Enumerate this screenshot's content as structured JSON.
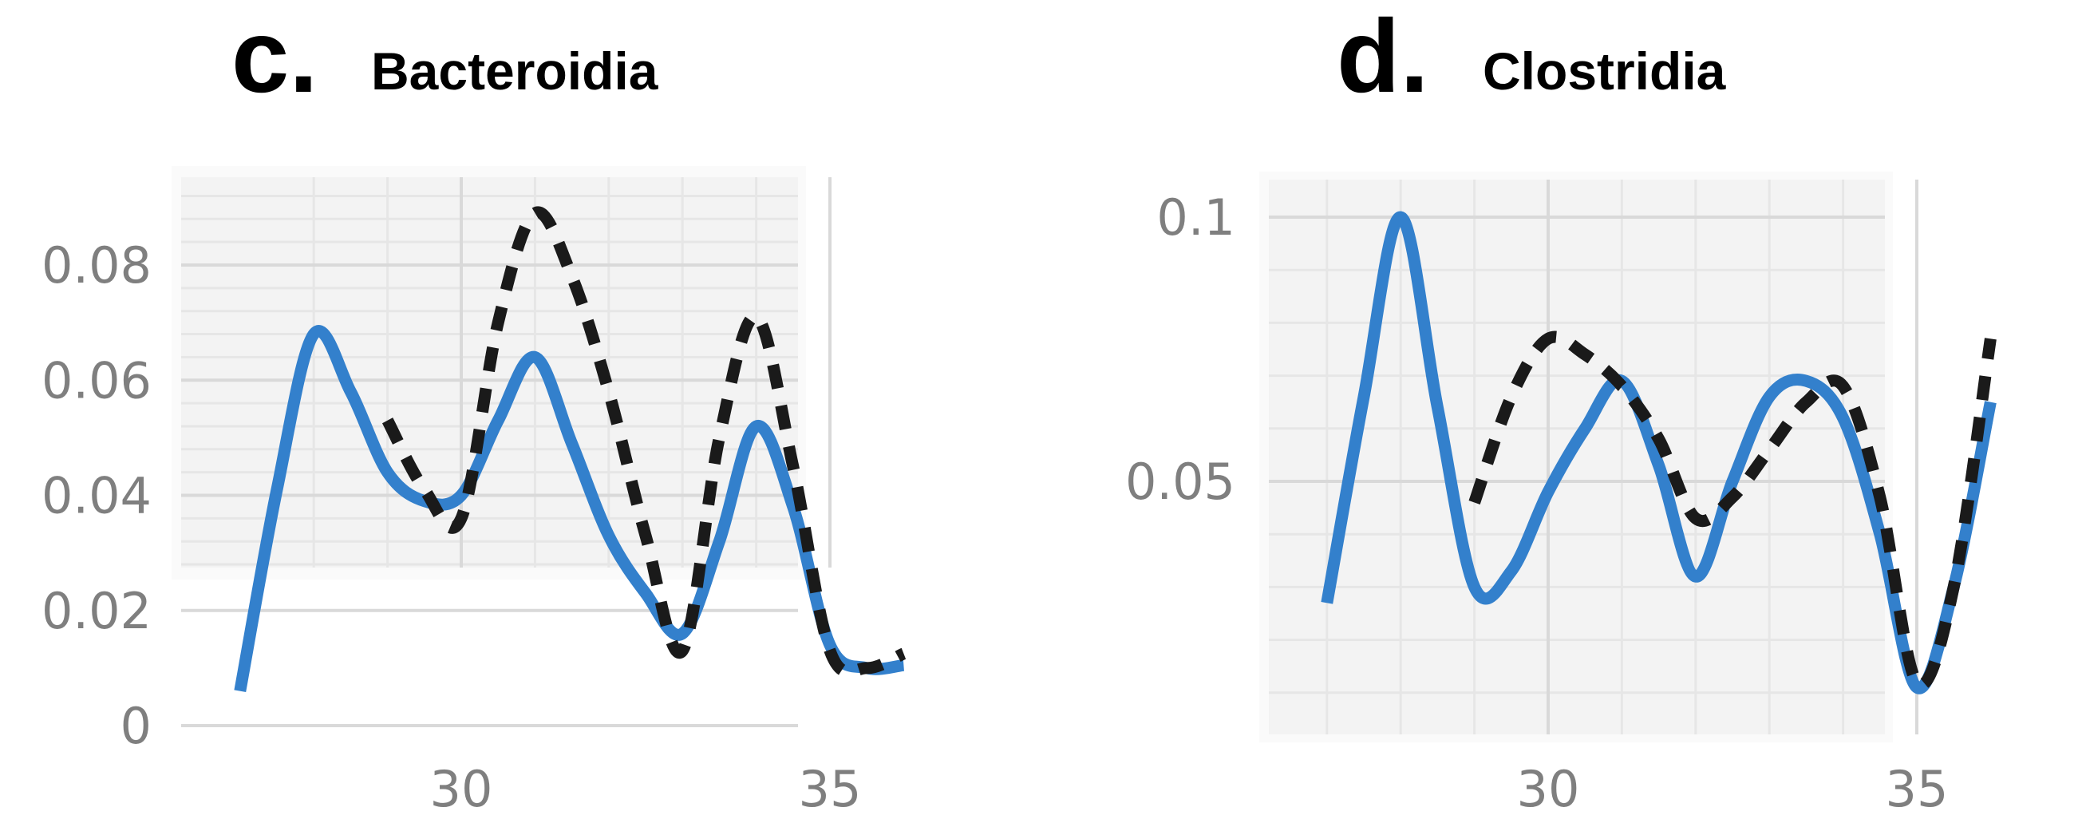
{
  "panels": [
    {
      "letter": "c.",
      "title": "Bacteroidia",
      "chart_data": {
        "type": "line",
        "title": "Bacteroidia",
        "xlabel": "",
        "ylabel": "",
        "xlim": [
          26.2,
          36.9
        ],
        "ylim": [
          -0.0005,
          0.094
        ],
        "x_ticks": [
          30,
          35
        ],
        "x_tick_labels": [
          "30",
          "35"
        ],
        "y_ticks": [
          0,
          0.02,
          0.04,
          0.06,
          0.08
        ],
        "y_tick_labels": [
          "0",
          "0.02",
          "0.04",
          "0.06",
          "0.08"
        ],
        "x_minor_grid": [
          28,
          29,
          31,
          32,
          33,
          34
        ],
        "y_minor_grid_step": 0.004,
        "grid": true,
        "series": [
          {
            "style": "solid",
            "color": "#3380cc",
            "x": [
              27,
              27.5,
              28,
              28.5,
              29,
              29.5,
              30,
              30.5,
              31,
              31.5,
              32,
              32.5,
              33,
              33.5,
              34,
              34.5,
              35,
              35.5,
              36
            ],
            "y": [
              0.006,
              0.041,
              0.068,
              0.058,
              0.044,
              0.039,
              0.04,
              0.053,
              0.064,
              0.049,
              0.033,
              0.023,
              0.016,
              0.032,
              0.052,
              0.038,
              0.014,
              0.01,
              0.0105
            ]
          },
          {
            "style": "dashed",
            "color": "#1a1a1a",
            "x": [
              29,
              29.5,
              30,
              30.5,
              31,
              31.5,
              32,
              32.5,
              33,
              33.5,
              34,
              34.5,
              35,
              35.5,
              36
            ],
            "y": [
              0.053,
              0.041,
              0.036,
              0.07,
              0.089,
              0.078,
              0.058,
              0.033,
              0.013,
              0.05,
              0.071,
              0.045,
              0.013,
              0.01,
              0.0125
            ]
          }
        ]
      }
    },
    {
      "letter": "d.",
      "title": "Clostridia",
      "chart_data": {
        "type": "line",
        "title": "Clostridia",
        "xlabel": "",
        "ylabel": "",
        "xlim": [
          26.2,
          36.9
        ],
        "ylim": [
          0.003,
          0.105
        ],
        "x_ticks": [
          30,
          35
        ],
        "x_tick_labels": [
          "30",
          "35"
        ],
        "y_ticks": [
          0.05,
          0.1
        ],
        "y_tick_labels": [
          "0.05",
          "0.1"
        ],
        "x_minor_grid": [
          27,
          28,
          29,
          31,
          32,
          33,
          34,
          36
        ],
        "y_minor_grid": [
          0.01,
          0.02,
          0.03,
          0.04,
          0.06,
          0.07,
          0.08,
          0.09
        ],
        "grid": true,
        "series": [
          {
            "style": "solid",
            "color": "#3380cc",
            "x": [
              27,
              27.5,
              28,
              28.5,
              29,
              29.5,
              30,
              30.5,
              31,
              31.5,
              32,
              32.5,
              33,
              33.5,
              34,
              34.5,
              35,
              35.5,
              36
            ],
            "y": [
              0.027,
              0.066,
              0.1,
              0.064,
              0.03,
              0.033,
              0.048,
              0.06,
              0.069,
              0.053,
              0.032,
              0.05,
              0.066,
              0.069,
              0.062,
              0.04,
              0.011,
              0.03,
              0.065
            ]
          },
          {
            "style": "dashed",
            "color": "#1a1a1a",
            "x": [
              29,
              29.5,
              30,
              30.5,
              31,
              31.5,
              32,
              32.5,
              33,
              33.5,
              34,
              34.5,
              35,
              35.5,
              36
            ],
            "y": [
              0.046,
              0.066,
              0.077,
              0.074,
              0.068,
              0.058,
              0.043,
              0.047,
              0.056,
              0.065,
              0.068,
              0.047,
              0.012,
              0.03,
              0.077
            ]
          }
        ]
      }
    }
  ]
}
